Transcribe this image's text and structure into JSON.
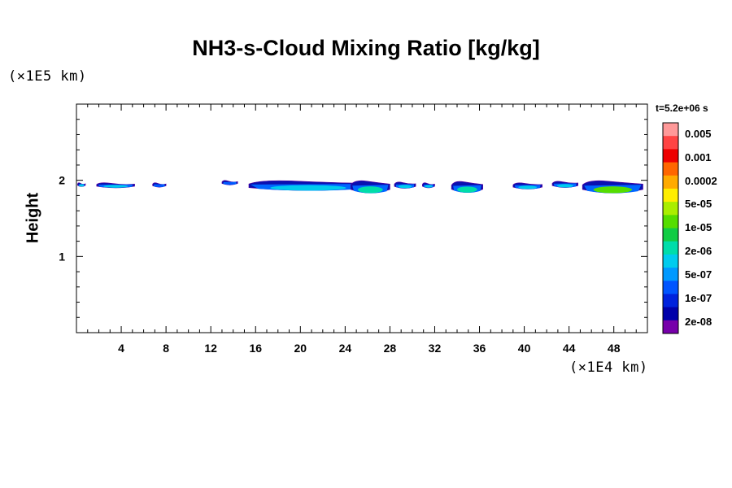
{
  "chart_data": {
    "type": "heatmap",
    "title": "NH3-s-Cloud Mixing Ratio [kg/kg]",
    "ylabel": "Height",
    "xlabel": "",
    "x_unit": "(×1E4 km)",
    "y_unit": "(×1E5 km)",
    "time_label": "t=5.2e+06 s",
    "xlim": [
      0,
      51
    ],
    "ylim": [
      0,
      3
    ],
    "x_ticks": [
      4,
      8,
      12,
      16,
      20,
      24,
      28,
      32,
      36,
      40,
      44,
      48
    ],
    "y_ticks": [
      1,
      2
    ],
    "colorbar": {
      "labels": [
        "0.005",
        "0.001",
        "0.0002",
        "5e-05",
        "1e-05",
        "2e-06",
        "5e-07",
        "1e-07",
        "2e-08"
      ],
      "colors": [
        "#ff9999",
        "#ff4444",
        "#ee0000",
        "#ff6600",
        "#ffaa00",
        "#ffee00",
        "#aaee00",
        "#55dd00",
        "#11cc44",
        "#00ddaa",
        "#00ccee",
        "#0099ff",
        "#0055ff",
        "#0022dd",
        "#0000aa",
        "#7700aa"
      ]
    },
    "cloud_patches": [
      {
        "x0": 0.1,
        "x1": 0.8,
        "y_top": 1.97,
        "y_bot": 1.91,
        "peak": "5e-07"
      },
      {
        "x0": 1.8,
        "x1": 5.2,
        "y_top": 1.97,
        "y_bot": 1.89,
        "peak": "5e-07"
      },
      {
        "x0": 6.8,
        "x1": 8.0,
        "y_top": 1.97,
        "y_bot": 1.9,
        "peak": "1e-07"
      },
      {
        "x0": 13.0,
        "x1": 14.4,
        "y_top": 2.0,
        "y_bot": 1.93,
        "peak": "1e-07"
      },
      {
        "x0": 15.4,
        "x1": 26.0,
        "y_top": 2.0,
        "y_bot": 1.84,
        "peak": "5e-07"
      },
      {
        "x0": 24.5,
        "x1": 28.0,
        "y_top": 2.0,
        "y_bot": 1.8,
        "peak": "2e-06"
      },
      {
        "x0": 28.4,
        "x1": 30.3,
        "y_top": 1.98,
        "y_bot": 1.88,
        "peak": "5e-07"
      },
      {
        "x0": 30.9,
        "x1": 32.0,
        "y_top": 1.97,
        "y_bot": 1.89,
        "peak": "5e-07"
      },
      {
        "x0": 33.5,
        "x1": 36.3,
        "y_top": 1.99,
        "y_bot": 1.81,
        "peak": "2e-06"
      },
      {
        "x0": 39.0,
        "x1": 41.6,
        "y_top": 1.97,
        "y_bot": 1.87,
        "peak": "5e-07"
      },
      {
        "x0": 42.5,
        "x1": 44.8,
        "y_top": 1.99,
        "y_bot": 1.89,
        "peak": "5e-07"
      },
      {
        "x0": 45.2,
        "x1": 50.6,
        "y_top": 2.0,
        "y_bot": 1.8,
        "peak": "1e-05"
      }
    ]
  }
}
